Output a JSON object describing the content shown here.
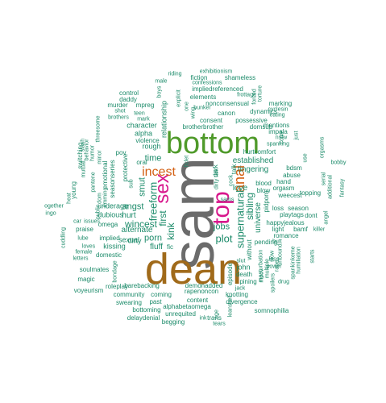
{
  "colors": {
    "gray": "#6b6b6b",
    "brown": "#a06a1a",
    "green": "#4f9a2a",
    "magenta": "#d8178c",
    "orange": "#d35f12",
    "teal": "#1c8b6a",
    "purple": "#7066a8"
  },
  "words": [
    {
      "text": "sam",
      "color": "gray"
    },
    {
      "text": "dean",
      "color": "brown"
    },
    {
      "text": "bottom",
      "color": "green"
    },
    {
      "text": "top",
      "color": "magenta"
    },
    {
      "text": "sex",
      "color": "magenta"
    },
    {
      "text": "incest",
      "color": "orange"
    },
    {
      "text": "anal",
      "color": "orange"
    },
    {
      "text": "first",
      "color": "teal"
    },
    {
      "text": "time",
      "color": "teal"
    },
    {
      "text": "kink",
      "color": "teal"
    },
    {
      "text": "porn",
      "color": "teal"
    },
    {
      "text": "plot",
      "color": "teal"
    },
    {
      "text": "jobs",
      "color": "teal"
    },
    {
      "text": "freeform",
      "color": "teal"
    },
    {
      "text": "supernatural",
      "color": "teal"
    },
    {
      "text": "established",
      "color": "teal"
    },
    {
      "text": "relationship",
      "color": "teal"
    },
    {
      "text": "love",
      "color": "teal"
    },
    {
      "text": "sibling",
      "color": "teal"
    },
    {
      "text": "wincest",
      "color": "teal"
    },
    {
      "text": "angst",
      "color": "teal"
    },
    {
      "text": "smut",
      "color": "teal"
    },
    {
      "text": "alternate",
      "color": "teal"
    },
    {
      "text": "universe",
      "color": "teal"
    },
    {
      "text": "fluff",
      "color": "teal"
    },
    {
      "text": "hurt",
      "color": "teal"
    },
    {
      "text": "sexual",
      "color": "teal"
    },
    {
      "text": "kissing",
      "color": "teal"
    },
    {
      "text": "dirty",
      "color": "teal"
    },
    {
      "text": "fic",
      "color": "teal"
    },
    {
      "text": "underage",
      "color": "teal"
    },
    {
      "text": "dubious",
      "color": "teal"
    },
    {
      "text": "rough",
      "color": "teal"
    },
    {
      "text": "alpha",
      "color": "teal"
    },
    {
      "text": "character",
      "color": "teal"
    },
    {
      "text": "violence",
      "color": "teal"
    },
    {
      "text": "oral",
      "color": "teal"
    },
    {
      "text": "pov",
      "color": "teal"
    },
    {
      "text": "protective",
      "color": "teal"
    },
    {
      "text": "consent",
      "color": "teal"
    },
    {
      "text": "possessive",
      "color": "teal"
    },
    {
      "text": "canon",
      "color": "teal"
    },
    {
      "text": "dynamics",
      "color": "teal"
    },
    {
      "text": "bunker",
      "color": "teal"
    },
    {
      "text": "nonconsensual",
      "color": "teal"
    },
    {
      "text": "brotherbrother",
      "color": "teal"
    },
    {
      "text": "domsub",
      "color": "teal"
    },
    {
      "text": "hurtcomfort",
      "color": "teal"
    },
    {
      "text": "tingering",
      "color": "teal"
    },
    {
      "text": "blow",
      "color": "teal"
    },
    {
      "text": "blood",
      "color": "teal"
    },
    {
      "text": "weecest",
      "color": "teal"
    },
    {
      "text": "playtags",
      "color": "teal"
    },
    {
      "text": "happyjealous",
      "color": "teal"
    },
    {
      "text": "pending",
      "color": "teal"
    },
    {
      "text": "pidporn",
      "color": "teal"
    },
    {
      "text": "john",
      "color": "teal"
    },
    {
      "text": "death",
      "color": "teal"
    },
    {
      "text": "pining",
      "color": "teal"
    },
    {
      "text": "knotting",
      "color": "teal"
    },
    {
      "text": "divergence",
      "color": "teal"
    },
    {
      "text": "rapenoncon",
      "color": "teal"
    },
    {
      "text": "demonadded",
      "color": "teal"
    },
    {
      "text": "barebacking",
      "color": "teal"
    },
    {
      "text": "roleplay",
      "color": "teal"
    },
    {
      "text": "community",
      "color": "teal"
    },
    {
      "text": "coming",
      "color": "teal"
    },
    {
      "text": "swearing",
      "color": "teal"
    },
    {
      "text": "past",
      "color": "teal"
    },
    {
      "text": "content",
      "color": "teal"
    },
    {
      "text": "unrequited",
      "color": "teal"
    },
    {
      "text": "alphabetaomega",
      "color": "teal"
    },
    {
      "text": "bottoming",
      "color": "teal"
    },
    {
      "text": "delaydenial",
      "color": "teal"
    },
    {
      "text": "begging",
      "color": "teal"
    },
    {
      "text": "trans",
      "color": "teal"
    },
    {
      "text": "somnophilia",
      "color": "teal"
    },
    {
      "text": "riding",
      "color": "teal"
    },
    {
      "text": "fiction",
      "color": "teal"
    },
    {
      "text": "shameless",
      "color": "teal"
    },
    {
      "text": "confessions",
      "color": "teal"
    },
    {
      "text": "impliedreferenced",
      "color": "teal"
    },
    {
      "text": "exhibitionism",
      "color": "teal"
    },
    {
      "text": "male",
      "color": "teal"
    },
    {
      "text": "elements",
      "color": "teal"
    },
    {
      "text": "frottage",
      "color": "teal"
    },
    {
      "text": "control",
      "color": "teal"
    },
    {
      "text": "daddy",
      "color": "teal"
    },
    {
      "text": "murder",
      "color": "teal"
    },
    {
      "text": "mpreg",
      "color": "teal"
    },
    {
      "text": "shot",
      "color": "teal"
    },
    {
      "text": "brothers",
      "color": "teal"
    },
    {
      "text": "teen",
      "color": "teal"
    },
    {
      "text": "mark",
      "color": "teal"
    },
    {
      "text": "marking",
      "color": "teal"
    },
    {
      "text": "cyclesin",
      "color": "teal"
    },
    {
      "text": "eating",
      "color": "teal"
    },
    {
      "text": "mentions",
      "color": "teal"
    },
    {
      "text": "impala",
      "color": "teal"
    },
    {
      "text": "nsfw",
      "color": "teal"
    },
    {
      "text": "spanking",
      "color": "teal"
    },
    {
      "text": "bdsm",
      "color": "teal"
    },
    {
      "text": "hand",
      "color": "teal"
    },
    {
      "text": "abuse",
      "color": "teal"
    },
    {
      "text": "orgasm",
      "color": "teal"
    },
    {
      "text": "season",
      "color": "teal"
    },
    {
      "text": "loss",
      "color": "teal"
    },
    {
      "text": "dont",
      "color": "teal"
    },
    {
      "text": "light",
      "color": "teal"
    },
    {
      "text": "bamf",
      "color": "teal"
    },
    {
      "text": "killer",
      "color": "teal"
    },
    {
      "text": "romance",
      "color": "teal"
    },
    {
      "text": "topping",
      "color": "teal"
    },
    {
      "text": "humiliation",
      "color": "teal"
    },
    {
      "text": "spankinkeme",
      "color": "teal"
    },
    {
      "text": "fantasy",
      "color": "teal"
    },
    {
      "text": "bobby",
      "color": "teal"
    },
    {
      "text": "angel",
      "color": "teal"
    },
    {
      "text": "young",
      "color": "teal"
    },
    {
      "text": "switching",
      "color": "teal"
    },
    {
      "text": "threesome",
      "color": "teal"
    },
    {
      "text": "behavior",
      "color": "teal"
    },
    {
      "text": "humor",
      "color": "teal"
    },
    {
      "text": "slash",
      "color": "teal"
    },
    {
      "text": "mutual",
      "color": "teal"
    },
    {
      "text": "emotional",
      "color": "teal"
    },
    {
      "text": "seasonseries",
      "color": "teal"
    },
    {
      "text": "omega",
      "color": "teal"
    },
    {
      "text": "praise",
      "color": "teal"
    },
    {
      "text": "issues",
      "color": "teal"
    },
    {
      "text": "car",
      "color": "teal"
    },
    {
      "text": "lube",
      "color": "teal"
    },
    {
      "text": "loves",
      "color": "teal"
    },
    {
      "text": "implied",
      "color": "teal"
    },
    {
      "text": "female",
      "color": "teal"
    },
    {
      "text": "letters",
      "color": "teal"
    },
    {
      "text": "domestic",
      "color": "teal"
    },
    {
      "text": "soulmates",
      "color": "teal"
    },
    {
      "text": "bondage",
      "color": "teal"
    },
    {
      "text": "magic",
      "color": "teal"
    },
    {
      "text": "voyeurism",
      "color": "teal"
    },
    {
      "text": "cuddling",
      "color": "teal"
    },
    {
      "text": "ogether",
      "color": "teal"
    },
    {
      "text": "ingo",
      "color": "teal"
    },
    {
      "text": "heat",
      "color": "teal"
    },
    {
      "text": "sams",
      "color": "teal"
    },
    {
      "text": "dark",
      "color": "teal"
    },
    {
      "text": "talk",
      "color": "teal"
    },
    {
      "text": "cock",
      "color": "teal"
    },
    {
      "text": "ficlet",
      "color": "teal"
    },
    {
      "text": "torture",
      "color": "teal"
    },
    {
      "text": "forced",
      "color": "teal"
    },
    {
      "text": "boys",
      "color": "teal"
    },
    {
      "text": "explicit",
      "color": "teal"
    },
    {
      "text": "one",
      "color": "teal"
    },
    {
      "text": "wing",
      "color": "teal"
    },
    {
      "text": "minor",
      "color": "teal"
    },
    {
      "text": "pantene",
      "color": "teal"
    },
    {
      "text": "sub",
      "color": "teal"
    },
    {
      "text": "dom",
      "color": "teal"
    },
    {
      "text": "rimming",
      "color": "teal"
    },
    {
      "text": "public",
      "color": "teal"
    },
    {
      "text": "episode",
      "color": "teal"
    },
    {
      "text": "slut",
      "color": "teal"
    },
    {
      "text": "jack",
      "color": "teal"
    },
    {
      "text": "hell",
      "color": "teal"
    },
    {
      "text": "power",
      "color": "teal"
    },
    {
      "text": "without",
      "color": "teal"
    },
    {
      "text": "masturbation",
      "color": "teal"
    },
    {
      "text": "unbound",
      "color": "teal"
    },
    {
      "text": "multiple",
      "color": "teal"
    },
    {
      "text": "drug",
      "color": "teal"
    },
    {
      "text": "dirty talk",
      "color": "teal"
    },
    {
      "text": "come",
      "color": "teal"
    },
    {
      "text": "just",
      "color": "teal"
    },
    {
      "text": "butt",
      "color": "teal"
    },
    {
      "text": "orgasms",
      "color": "teal"
    },
    {
      "text": "use",
      "color": "teal"
    },
    {
      "text": "serial",
      "color": "teal"
    },
    {
      "text": "additional",
      "color": "teal"
    },
    {
      "text": "leans",
      "color": "teal"
    },
    {
      "text": "slow",
      "color": "teal"
    },
    {
      "text": "rape",
      "color": "teal"
    },
    {
      "text": "spoilers",
      "color": "teal"
    },
    {
      "text": "less",
      "color": "teal"
    },
    {
      "text": "starts",
      "color": "teal"
    },
    {
      "text": "mpov",
      "color": "teal"
    },
    {
      "text": "ink",
      "color": "teal"
    },
    {
      "text": "tears",
      "color": "teal"
    },
    {
      "text": "age",
      "color": "teal"
    }
  ]
}
